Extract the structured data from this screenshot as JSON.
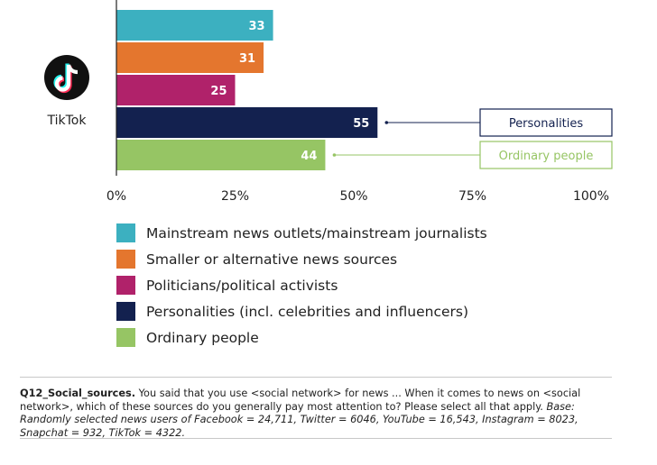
{
  "chart_data": {
    "type": "bar",
    "orientation": "horizontal",
    "platform": "TikTok",
    "categories": [
      "Mainstream news outlets/mainstream journalists",
      "Smaller or alternative news sources",
      "Politicians/political activists",
      "Personalities (incl. celebrities and influencers)",
      "Ordinary people"
    ],
    "values": [
      33,
      31,
      25,
      55,
      44
    ],
    "colors": [
      "#3cb0c0",
      "#e4762e",
      "#b0226a",
      "#13214f",
      "#96c564"
    ],
    "xlim": [
      0,
      100
    ],
    "xticks": [
      "0%",
      "25%",
      "50%",
      "75%",
      "100%"
    ],
    "callouts": [
      {
        "bar_index": 3,
        "text": "Personalities",
        "color": "#13214f"
      },
      {
        "bar_index": 4,
        "text": "Ordinary people",
        "color": "#96c564"
      }
    ],
    "legend": [
      "Mainstream news outlets/mainstream journalists",
      "Smaller or alternative news sources",
      "Politicians/political activists",
      "Personalities (incl. celebrities and influencers)",
      "Ordinary people"
    ]
  },
  "note": {
    "code": "Q12_Social_sources.",
    "question": " You said that you use <social network> for news ... When it comes to news on <social network>, which of these sources do you generally pay most attention to? Please select all that apply. ",
    "base": "Base: Randomly selected news users of Facebook = 24,711, Twitter = 6046, YouTube = 16,543, Instagram = 8023, Snapchat = 932, TikTok = 4322."
  },
  "icons": {
    "platform_logo": "tiktok-logo-icon"
  }
}
